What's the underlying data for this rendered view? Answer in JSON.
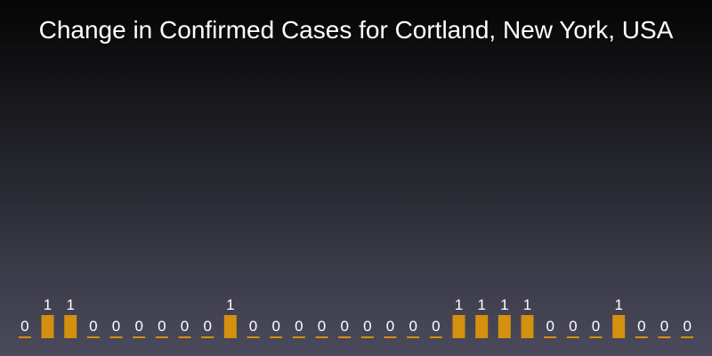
{
  "chart_data": {
    "type": "bar",
    "title": "Change in Confirmed Cases for Cortland, New York, USA",
    "xlabel": "",
    "ylabel": "",
    "ylim": [
      0,
      1
    ],
    "grid": false,
    "bar_color": "#d4900f",
    "background_color": "#2a2a33",
    "values": [
      0,
      1,
      1,
      0,
      0,
      0,
      0,
      0,
      0,
      1,
      0,
      0,
      0,
      0,
      0,
      0,
      0,
      0,
      0,
      1,
      1,
      1,
      1,
      0,
      0,
      0,
      1,
      0,
      0,
      0
    ]
  }
}
